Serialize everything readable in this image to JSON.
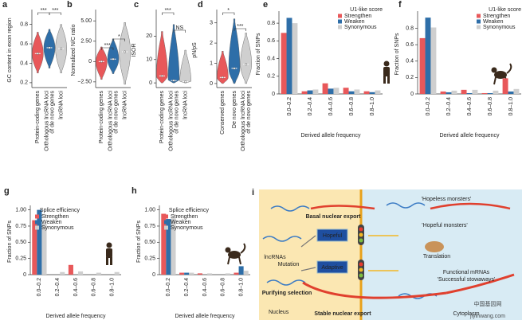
{
  "chart_data": [
    {
      "panel": "a",
      "type": "violin",
      "y_label": "GC content in exon region",
      "categories": [
        [
          "Protein-coding genes"
        ],
        [
          "Orthologous lncRNA loci",
          "of de novo genes"
        ],
        [
          "lncRNA loci"
        ]
      ],
      "values": [
        0.5,
        0.56,
        0.55
      ],
      "min": [
        0.3,
        0.35,
        0.3
      ],
      "max": [
        0.72,
        0.75,
        0.8
      ],
      "colors": [
        "#e8585a",
        "#2e6ea8",
        "#cfcfcf"
      ],
      "ylim": [
        0.15,
        0.92
      ],
      "yticks": [
        0.2,
        0.4,
        0.6,
        0.8
      ],
      "significance": [
        "***",
        "***"
      ]
    },
    {
      "panel": "b",
      "type": "violin",
      "y_label": "Normalized N/C ratio",
      "categories": [
        [
          "Protein-coding genes"
        ],
        [
          "Orthologous lncRNA loci",
          "of de novo genes"
        ],
        [
          "lncRNA loci"
        ]
      ],
      "values": [
        0,
        0.3,
        1.2
      ],
      "min": [
        -2.2,
        -1.5,
        -2.8
      ],
      "max": [
        1.8,
        2.8,
        4.8
      ],
      "colors": [
        "#e8585a",
        "#2e6ea8",
        "#cfcfcf"
      ],
      "ylim": [
        -3.2,
        6
      ],
      "yticks": [
        {
          "value": -2.5,
          "label": "−2.50"
        },
        0,
        {
          "value": 2.5,
          "label": "2.50"
        },
        {
          "value": 5,
          "label": "5.00"
        }
      ],
      "significance": [
        "***",
        "*"
      ]
    },
    {
      "panel": "c",
      "type": "violin",
      "y_label": "ISOR",
      "categories": [
        [
          "Protein-coding genes"
        ],
        [
          "Orthologous lncRNA loci",
          "of de novo genes"
        ],
        [
          "lncRNA loci"
        ]
      ],
      "values": [
        3,
        1,
        0.5
      ],
      "min": [
        0,
        0,
        0
      ],
      "max": [
        22,
        25,
        14
      ],
      "colors": [
        "#e8585a",
        "#2e6ea8",
        "#cfcfcf"
      ],
      "ylim": [
        -2,
        30
      ],
      "yticks": [
        0,
        10,
        20
      ],
      "significance": [
        "***",
        "NS"
      ]
    },
    {
      "panel": "d",
      "type": "violin",
      "y_label": "pN/pS",
      "categories": [
        [
          "Conserved genes"
        ],
        [
          "De novo genes"
        ],
        [
          "Orthologous lncRNA loci",
          "of de novo genes"
        ]
      ],
      "values": [
        0.3,
        0.75,
        0.95
      ],
      "min": [
        0,
        0,
        0
      ],
      "max": [
        1.6,
        3.2,
        2.5
      ],
      "colors": [
        "#e8585a",
        "#2e6ea8",
        "#cfcfcf"
      ],
      "ylim": [
        -0.2,
        3.5
      ],
      "yticks": [
        0,
        1,
        2,
        3
      ],
      "significance": [
        "*",
        "***"
      ]
    },
    {
      "panel": "e",
      "type": "bar",
      "y_label": "Fraction of SNPs",
      "x_label": "Derived allele frequency",
      "legend_title": "U1-like score",
      "categories": [
        "0.0–0.2",
        "0.2–0.4",
        "0.4–0.6",
        "0.6–0.8",
        "0.8–1.0"
      ],
      "series": [
        {
          "name": "Strengthen",
          "color": "#e8585a",
          "values": [
            0.69,
            0.03,
            0.12,
            0.07,
            0.03
          ]
        },
        {
          "name": "Weaken",
          "color": "#2e6ea8",
          "values": [
            0.86,
            0.04,
            0.06,
            0.03,
            0.02
          ]
        },
        {
          "name": "Synonymous",
          "color": "#cfcfcf",
          "values": [
            0.8,
            0.05,
            0.07,
            0.05,
            0.04
          ]
        }
      ],
      "ylim": [
        0,
        0.9
      ],
      "yticks": [
        0,
        0.2,
        0.4,
        0.6,
        0.8
      ]
    },
    {
      "panel": "f",
      "type": "bar",
      "y_label": "Fraction of SNPs",
      "x_label": "Derived allele frequency",
      "legend_title": "U1-like score",
      "categories": [
        "0.0–0.2",
        "0.2–0.4",
        "0.4–0.6",
        "0.6–0.8",
        "0.8–1.0"
      ],
      "series": [
        {
          "name": "Strengthen",
          "color": "#e8585a",
          "values": [
            0.68,
            0.03,
            0.05,
            0.01,
            0.19
          ]
        },
        {
          "name": "Weaken",
          "color": "#2e6ea8",
          "values": [
            0.93,
            0.02,
            0.01,
            0.01,
            0.03
          ]
        },
        {
          "name": "Synonymous",
          "color": "#cfcfcf",
          "values": [
            0.81,
            0.04,
            0.05,
            0.04,
            0.06
          ]
        }
      ],
      "ylim": [
        0,
        0.97
      ],
      "yticks": [
        0,
        0.2,
        0.4,
        0.6,
        0.8
      ]
    },
    {
      "panel": "g",
      "type": "bar",
      "y_label": "Fraction of SNPs",
      "x_label": "Derived allele frequency",
      "legend_title": "Splice efficiency",
      "categories": [
        "0.0–0.2",
        "0.2–0.4",
        "0.4–0.6",
        "0.6–0.8",
        "0.8–1.0"
      ],
      "series": [
        {
          "name": "Strengthen",
          "color": "#e8585a",
          "values": [
            0.84,
            0,
            0.15,
            0,
            0
          ]
        },
        {
          "name": "Weaken",
          "color": "#2e6ea8",
          "values": [
            1.0,
            0,
            0,
            0,
            0
          ]
        },
        {
          "name": "Synonymous",
          "color": "#cfcfcf",
          "values": [
            0.79,
            0.04,
            0.05,
            0.03,
            0.04
          ]
        }
      ],
      "ylim": [
        0,
        1.02
      ],
      "yticks": [
        0,
        0.25,
        {
          "value": 0.5,
          "label": "0.50"
        },
        0.75,
        {
          "value": 1,
          "label": "1.00"
        }
      ]
    },
    {
      "panel": "h",
      "type": "bar",
      "y_label": "Fraction of SNPs",
      "x_label": "Derived allele frequency",
      "legend_title": "Splice efficiency",
      "categories": [
        "0.0–0.2",
        "0.2–0.4",
        "0.4–0.6",
        "0.6–0.8",
        "0.8–1.0"
      ],
      "series": [
        {
          "name": "Strengthen",
          "color": "#e8585a",
          "values": [
            0.94,
            0.03,
            0.02,
            0,
            0.03
          ]
        },
        {
          "name": "Weaken",
          "color": "#2e6ea8",
          "values": [
            0.86,
            0.03,
            0,
            0,
            0.13
          ]
        },
        {
          "name": "Synonymous",
          "color": "#cfcfcf",
          "values": [
            0.87,
            0.03,
            0.02,
            0.02,
            0.06
          ]
        }
      ],
      "ylim": [
        0,
        1.02
      ],
      "yticks": [
        0,
        0.25,
        {
          "value": 0.5,
          "label": "0.50"
        },
        0.75,
        {
          "value": 1,
          "label": "1.00"
        }
      ]
    }
  ],
  "diagram": {
    "panel": "i",
    "labels": [
      "'Hopeless monsters'",
      "Basal nuclear export",
      "'Hopeful monsters'",
      "Hopeful",
      "Adaptive",
      "lncRNAs",
      "Mutation",
      "Translation",
      "Purifying selection",
      "Functional mRNAs",
      "'Successful stowaways'",
      "Stable nuclear export",
      "Nucleus",
      "Cytoplasm"
    ]
  },
  "watermark": [
    "中国基因网",
    "jiyinwang.com"
  ]
}
